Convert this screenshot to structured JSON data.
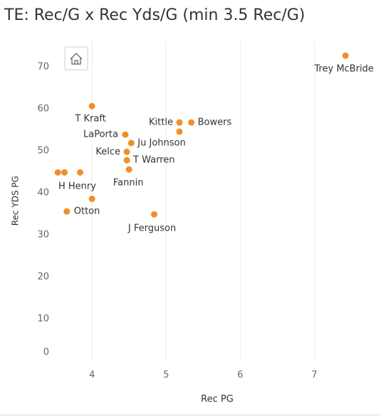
{
  "chart_data": {
    "type": "scatter",
    "title": "TE: Rec/G x Rec Yds/G (min 3.5 Rec/G)",
    "x_label": "Rec PG",
    "y_label": "Rec YDS PG",
    "color": "#f28e2b",
    "x": [
      7.42,
      4.0,
      5.18,
      5.34,
      5.18,
      4.45,
      4.53,
      4.47,
      4.47,
      4.5,
      3.54,
      3.63,
      3.84,
      4.0,
      3.66,
      4.84
    ],
    "values": [
      72.7,
      60.7,
      56.8,
      56.8,
      54.6,
      53.9,
      51.9,
      49.8,
      47.8,
      45.6,
      44.9,
      44.9,
      44.9,
      38.6,
      35.6,
      34.9
    ],
    "labels": [
      "Trey McBride",
      "T Kraft",
      "Kittle",
      "Bowers",
      null,
      "LaPorta",
      "Ju Johnson",
      "Kelce",
      "T Warren",
      "Fannin",
      null,
      null,
      "H Henry",
      null,
      "Otton",
      "J Ferguson"
    ],
    "xlim": [
      3.48,
      7.88
    ],
    "ylim": [
      0,
      76.3
    ],
    "xticks": [
      4,
      5,
      6,
      7
    ],
    "yticks": [
      0,
      10,
      20,
      30,
      40,
      50,
      60,
      70
    ],
    "grid": true
  }
}
